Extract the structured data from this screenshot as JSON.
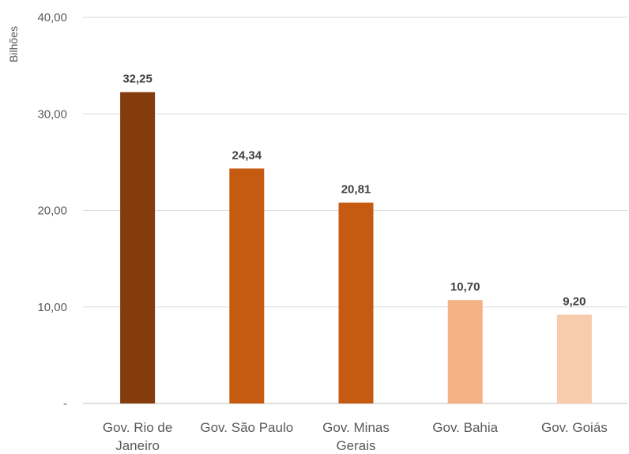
{
  "chart_data": {
    "type": "bar",
    "ylabel": "Bilhões",
    "ylim": [
      0,
      40
    ],
    "yticks": [
      0,
      10,
      20,
      30,
      40
    ],
    "ytick_labels": [
      "-",
      "10,00",
      "20,00",
      "30,00",
      "40,00"
    ],
    "grid": true,
    "categories": [
      [
        "Gov. Rio de",
        "Janeiro"
      ],
      [
        "Gov. São Paulo"
      ],
      [
        "Gov. Minas",
        "Gerais"
      ],
      [
        "Gov. Bahia"
      ],
      [
        "Gov. Goiás"
      ]
    ],
    "values": [
      32.25,
      24.34,
      20.81,
      10.7,
      9.2
    ],
    "value_labels": [
      "32,25",
      "24,34",
      "20,81",
      "10,70",
      "9,20"
    ],
    "colors": [
      "#843C0C",
      "#C55A11",
      "#C55A11",
      "#F4B183",
      "#F8CBAD"
    ],
    "gridline_color": "#D9D9D9",
    "axis_color": "#BFBFBF"
  }
}
